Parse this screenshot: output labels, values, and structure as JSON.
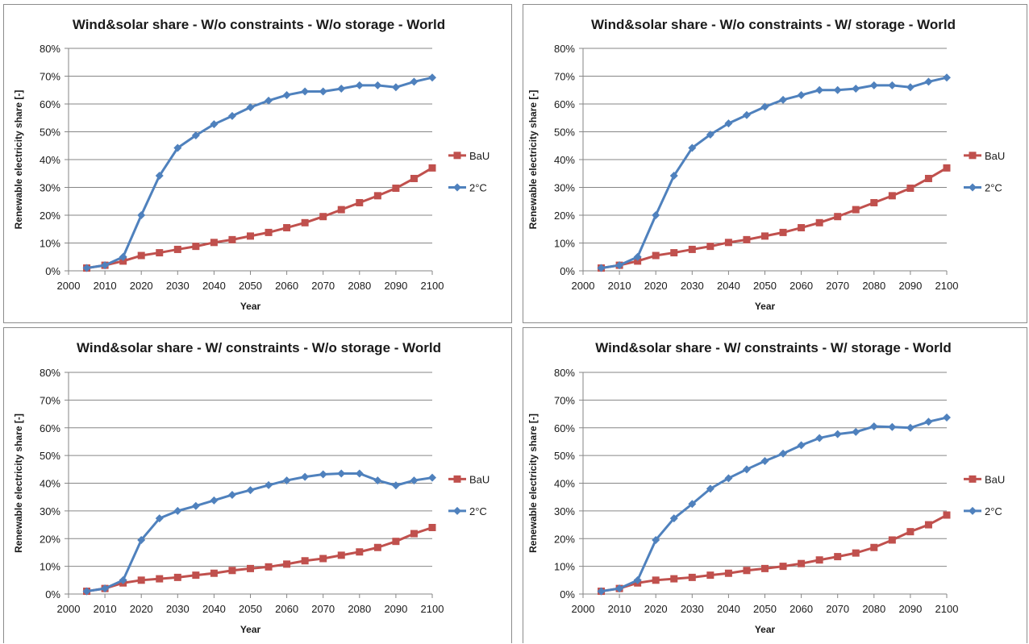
{
  "chart_data": [
    {
      "type": "line",
      "title": "Wind&solar share - W/o constraints - W/o storage - World",
      "xlabel": "Year",
      "ylabel": "Renewable electricity share [-]",
      "ylim": [
        0,
        0.8
      ],
      "xlim": [
        2000,
        2100
      ],
      "x_ticks": [
        "2000",
        "2010",
        "2020",
        "2030",
        "2040",
        "2050",
        "2060",
        "2070",
        "2080",
        "2090",
        "2100"
      ],
      "y_ticks": [
        "0%",
        "10%",
        "20%",
        "30%",
        "40%",
        "50%",
        "60%",
        "70%",
        "80%"
      ],
      "grid": "horizontal",
      "legend": "right",
      "x": [
        2005,
        2010,
        2015,
        2020,
        2025,
        2030,
        2035,
        2040,
        2045,
        2050,
        2055,
        2060,
        2065,
        2070,
        2075,
        2080,
        2085,
        2090,
        2095,
        2100
      ],
      "series": [
        {
          "name": "BaU",
          "color": "#c0504d",
          "marker": "square",
          "values": [
            0.01,
            0.02,
            0.035,
            0.055,
            0.065,
            0.077,
            0.088,
            0.102,
            0.112,
            0.125,
            0.138,
            0.155,
            0.173,
            0.195,
            0.22,
            0.245,
            0.27,
            0.297,
            0.332,
            0.37
          ]
        },
        {
          "name": "2°C",
          "color": "#4f81bd",
          "marker": "diamond",
          "values": [
            0.01,
            0.02,
            0.05,
            0.2,
            0.342,
            0.442,
            0.487,
            0.527,
            0.557,
            0.588,
            0.612,
            0.632,
            0.645,
            0.645,
            0.655,
            0.667,
            0.667,
            0.66,
            0.68,
            0.695
          ]
        }
      ]
    },
    {
      "type": "line",
      "title": "Wind&solar share - W/o constraints - W/ storage - World",
      "xlabel": "Year",
      "ylabel": "Renewable electricity share [-]",
      "ylim": [
        0,
        0.8
      ],
      "xlim": [
        2000,
        2100
      ],
      "x_ticks": [
        "2000",
        "2010",
        "2020",
        "2030",
        "2040",
        "2050",
        "2060",
        "2070",
        "2080",
        "2090",
        "2100"
      ],
      "y_ticks": [
        "0%",
        "10%",
        "20%",
        "30%",
        "40%",
        "50%",
        "60%",
        "70%",
        "80%"
      ],
      "grid": "horizontal",
      "legend": "right",
      "x": [
        2005,
        2010,
        2015,
        2020,
        2025,
        2030,
        2035,
        2040,
        2045,
        2050,
        2055,
        2060,
        2065,
        2070,
        2075,
        2080,
        2085,
        2090,
        2095,
        2100
      ],
      "series": [
        {
          "name": "BaU",
          "color": "#c0504d",
          "marker": "square",
          "values": [
            0.01,
            0.02,
            0.035,
            0.055,
            0.065,
            0.077,
            0.088,
            0.102,
            0.112,
            0.125,
            0.138,
            0.155,
            0.173,
            0.195,
            0.22,
            0.245,
            0.27,
            0.297,
            0.332,
            0.37
          ]
        },
        {
          "name": "2°C",
          "color": "#4f81bd",
          "marker": "diamond",
          "values": [
            0.01,
            0.02,
            0.05,
            0.2,
            0.342,
            0.442,
            0.49,
            0.53,
            0.56,
            0.59,
            0.615,
            0.632,
            0.65,
            0.65,
            0.655,
            0.667,
            0.667,
            0.66,
            0.68,
            0.695
          ]
        }
      ]
    },
    {
      "type": "line",
      "title": "Wind&solar share - W/ constraints - W/o storage - World",
      "xlabel": "Year",
      "ylabel": "Renewable electricity share [-]",
      "ylim": [
        0,
        0.8
      ],
      "xlim": [
        2000,
        2100
      ],
      "x_ticks": [
        "2000",
        "2010",
        "2020",
        "2030",
        "2040",
        "2050",
        "2060",
        "2070",
        "2080",
        "2090",
        "2100"
      ],
      "y_ticks": [
        "0%",
        "10%",
        "20%",
        "30%",
        "40%",
        "50%",
        "60%",
        "70%",
        "80%"
      ],
      "grid": "horizontal",
      "legend": "right",
      "x": [
        2005,
        2010,
        2015,
        2020,
        2025,
        2030,
        2035,
        2040,
        2045,
        2050,
        2055,
        2060,
        2065,
        2070,
        2075,
        2080,
        2085,
        2090,
        2095,
        2100
      ],
      "series": [
        {
          "name": "BaU",
          "color": "#c0504d",
          "marker": "square",
          "values": [
            0.01,
            0.02,
            0.04,
            0.05,
            0.055,
            0.06,
            0.068,
            0.075,
            0.085,
            0.092,
            0.098,
            0.108,
            0.12,
            0.128,
            0.14,
            0.152,
            0.168,
            0.19,
            0.218,
            0.24
          ]
        },
        {
          "name": "2°C",
          "color": "#4f81bd",
          "marker": "diamond",
          "values": [
            0.01,
            0.02,
            0.05,
            0.195,
            0.273,
            0.3,
            0.318,
            0.338,
            0.358,
            0.375,
            0.393,
            0.41,
            0.423,
            0.432,
            0.435,
            0.435,
            0.41,
            0.392,
            0.41,
            0.42
          ]
        }
      ]
    },
    {
      "type": "line",
      "title": "Wind&solar share - W/ constraints - W/ storage - World",
      "xlabel": "Year",
      "ylabel": "Renewable electricity share [-]",
      "ylim": [
        0,
        0.8
      ],
      "xlim": [
        2000,
        2100
      ],
      "x_ticks": [
        "2000",
        "2010",
        "2020",
        "2030",
        "2040",
        "2050",
        "2060",
        "2070",
        "2080",
        "2090",
        "2100"
      ],
      "y_ticks": [
        "0%",
        "10%",
        "20%",
        "30%",
        "40%",
        "50%",
        "60%",
        "70%",
        "80%"
      ],
      "grid": "horizontal",
      "legend": "right",
      "x": [
        2005,
        2010,
        2015,
        2020,
        2025,
        2030,
        2035,
        2040,
        2045,
        2050,
        2055,
        2060,
        2065,
        2070,
        2075,
        2080,
        2085,
        2090,
        2095,
        2100
      ],
      "series": [
        {
          "name": "BaU",
          "color": "#c0504d",
          "marker": "square",
          "values": [
            0.01,
            0.02,
            0.04,
            0.05,
            0.055,
            0.06,
            0.068,
            0.075,
            0.085,
            0.092,
            0.1,
            0.11,
            0.123,
            0.135,
            0.148,
            0.168,
            0.195,
            0.225,
            0.25,
            0.285
          ]
        },
        {
          "name": "2°C",
          "color": "#4f81bd",
          "marker": "diamond",
          "values": [
            0.01,
            0.02,
            0.05,
            0.195,
            0.273,
            0.325,
            0.38,
            0.418,
            0.45,
            0.48,
            0.507,
            0.537,
            0.563,
            0.577,
            0.585,
            0.605,
            0.603,
            0.6,
            0.622,
            0.637
          ]
        }
      ]
    }
  ]
}
